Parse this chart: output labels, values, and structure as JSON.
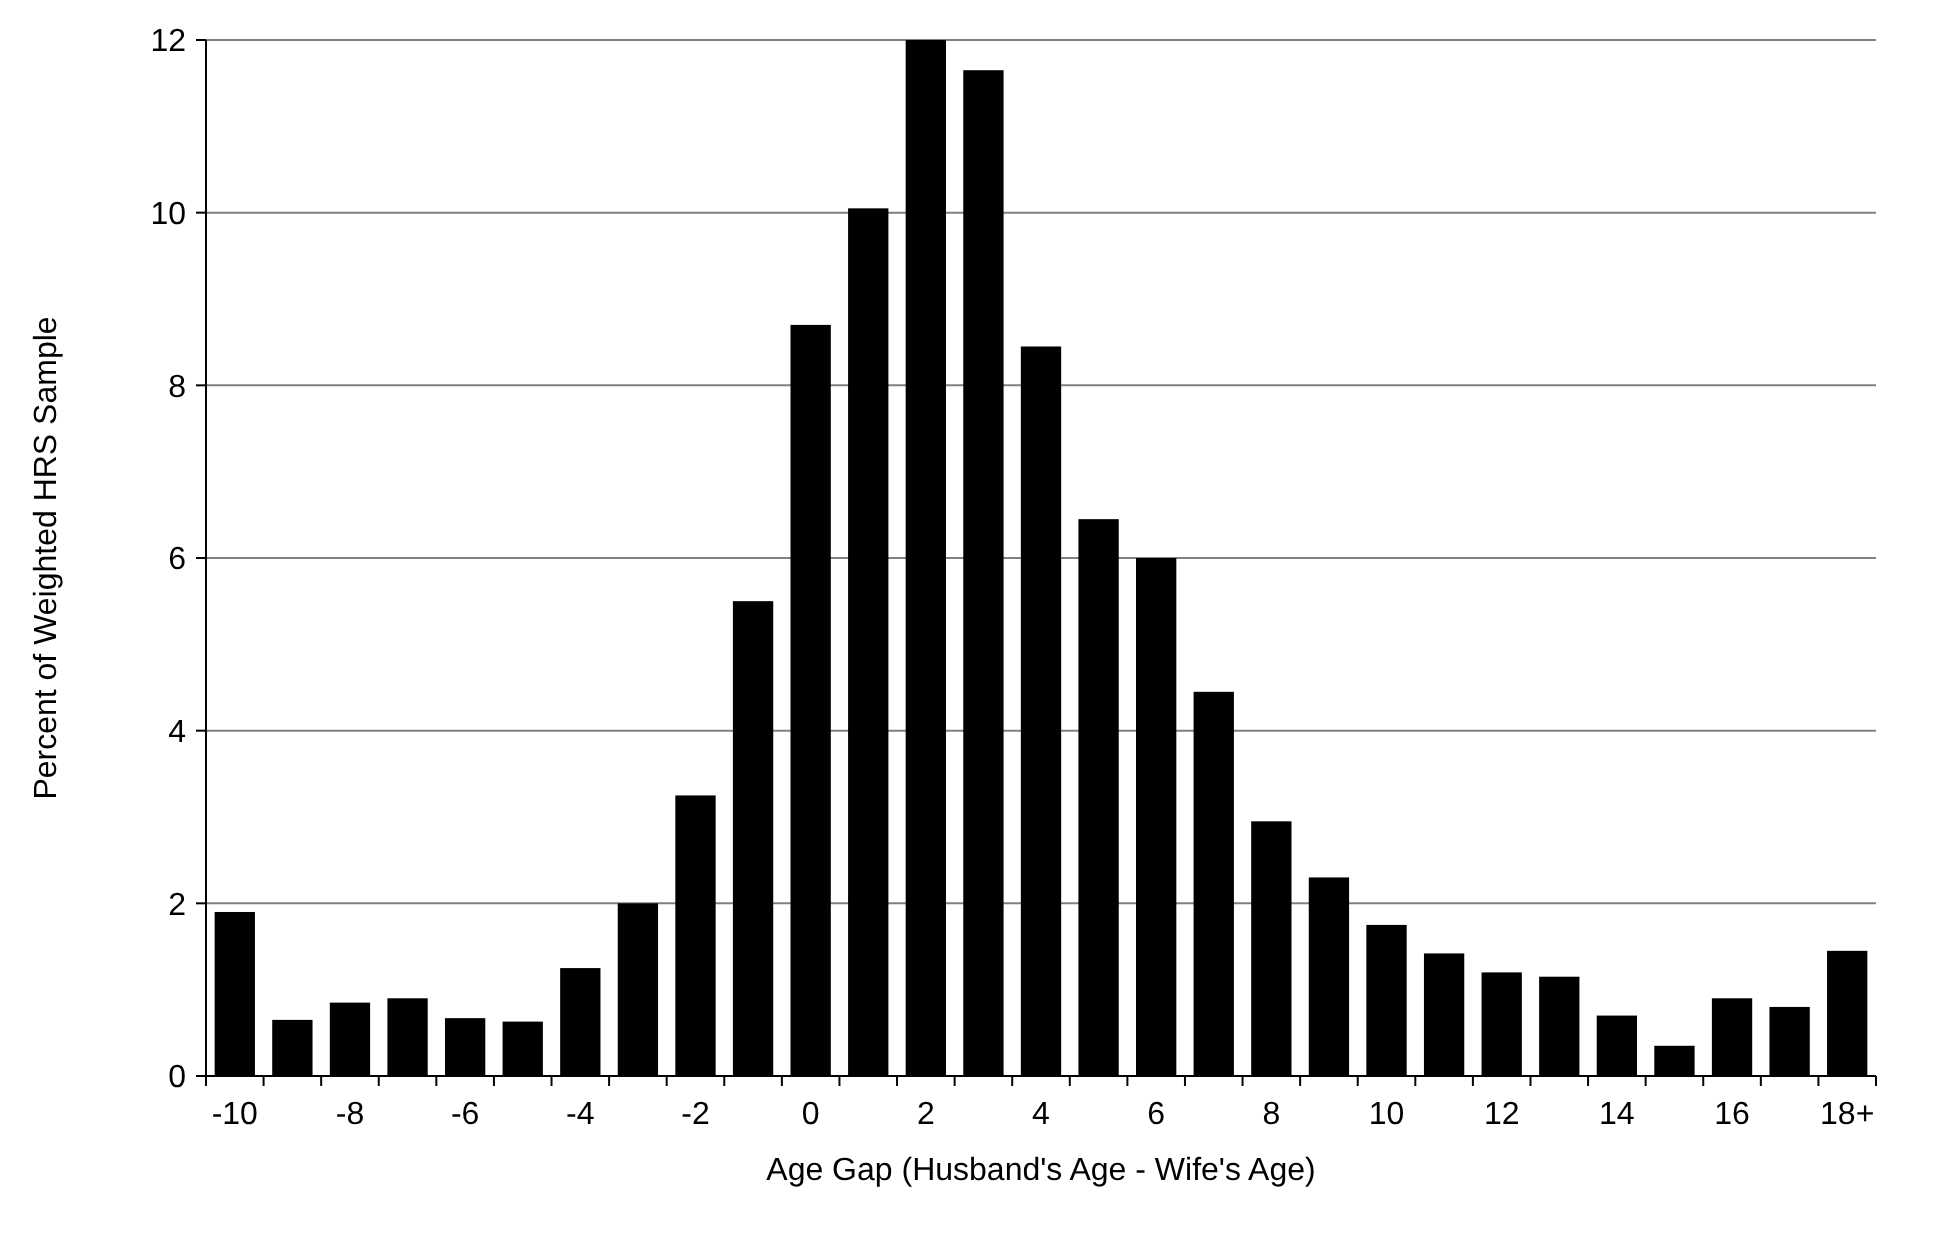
{
  "chart_data": {
    "type": "bar",
    "xlabel": "Age Gap (Husband's Age - Wife's Age)",
    "ylabel": "Percent of Weighted HRS Sample",
    "categories": [
      "-10",
      null,
      "-8",
      null,
      "-6",
      null,
      "-4",
      null,
      "-2",
      null,
      "0",
      null,
      "2",
      null,
      "4",
      null,
      "6",
      null,
      "8",
      null,
      "10",
      null,
      "12",
      null,
      "14",
      null,
      "16",
      null,
      "18+"
    ],
    "values": [
      1.9,
      0.65,
      0.85,
      0.9,
      0.67,
      0.63,
      1.25,
      2.0,
      3.25,
      5.5,
      8.7,
      10.05,
      12.0,
      11.65,
      8.45,
      6.45,
      6.0,
      4.45,
      2.95,
      2.3,
      1.75,
      1.42,
      1.2,
      1.15,
      0.7,
      0.35,
      0.9,
      0.8,
      1.45
    ],
    "color": "#000000",
    "ylim": [
      0,
      12
    ],
    "yticks": [
      0,
      2,
      4,
      6,
      8,
      10,
      12
    ],
    "grid": "y"
  }
}
